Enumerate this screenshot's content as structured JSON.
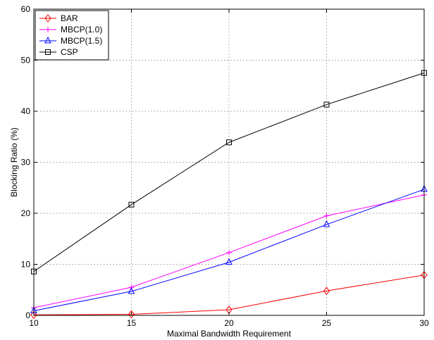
{
  "chart_data": {
    "type": "line",
    "title": "",
    "xlabel": "Maximal Bandwidth Requirement",
    "ylabel": "Blocking Ratio (%)",
    "x": [
      10,
      15,
      20,
      25,
      30
    ],
    "xlim": [
      10,
      30
    ],
    "ylim": [
      0,
      60
    ],
    "xticks": [
      10,
      15,
      20,
      25,
      30
    ],
    "yticks": [
      0,
      10,
      20,
      30,
      40,
      50,
      60
    ],
    "grid": true,
    "legend_position": "top-left",
    "series": [
      {
        "name": "BAR",
        "values": [
          0.1,
          0.2,
          1.1,
          4.8,
          7.9
        ],
        "color": "#ff0000",
        "marker": "diamond"
      },
      {
        "name": "MBCP(1.0)",
        "values": [
          1.5,
          5.5,
          12.3,
          19.5,
          23.6
        ],
        "color": "#ff00ff",
        "marker": "plus"
      },
      {
        "name": "MBCP(1.5)",
        "values": [
          0.9,
          4.7,
          10.4,
          17.8,
          24.7
        ],
        "color": "#0000ff",
        "marker": "triangle"
      },
      {
        "name": "CSP",
        "values": [
          8.6,
          21.7,
          33.9,
          41.3,
          47.5
        ],
        "color": "#000000",
        "marker": "square"
      }
    ]
  }
}
